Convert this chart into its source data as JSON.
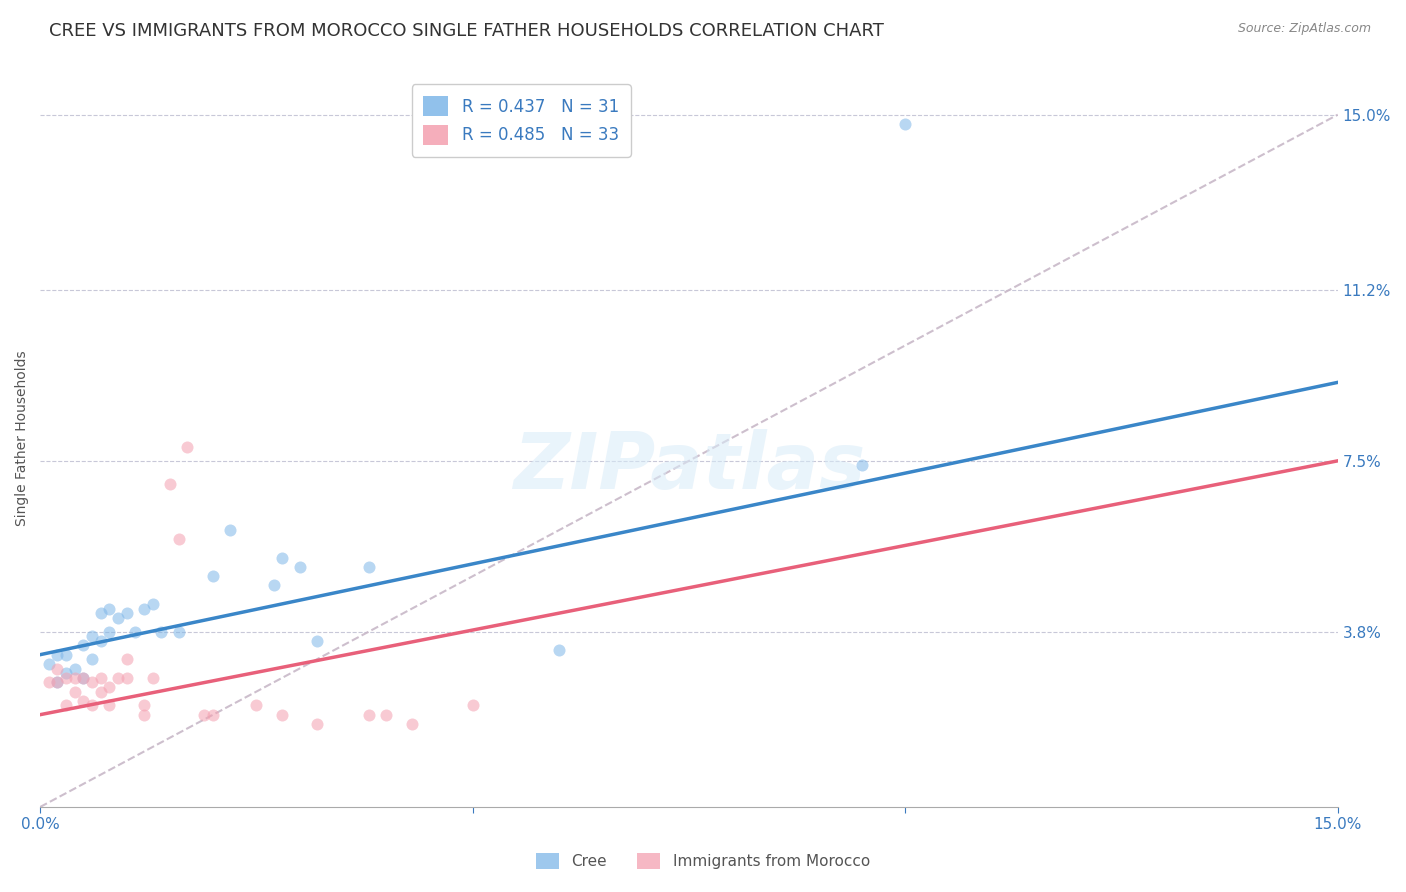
{
  "title": "CREE VS IMMIGRANTS FROM MOROCCO SINGLE FATHER HOUSEHOLDS CORRELATION CHART",
  "source": "Source: ZipAtlas.com",
  "ylabel": "Single Father Households",
  "watermark": "ZIPatlas",
  "xlim": [
    0.0,
    0.15
  ],
  "ylim": [
    0.0,
    0.16
  ],
  "ytick_labels_right": [
    "15.0%",
    "11.2%",
    "7.5%",
    "3.8%"
  ],
  "ytick_vals_right": [
    0.15,
    0.112,
    0.075,
    0.038
  ],
  "legend_entries": [
    {
      "label": "R = 0.437   N = 31",
      "color": "#7EB6E8"
    },
    {
      "label": "R = 0.485   N = 33",
      "color": "#F4A0B0"
    }
  ],
  "cree_scatter": [
    [
      0.001,
      0.031
    ],
    [
      0.002,
      0.027
    ],
    [
      0.002,
      0.033
    ],
    [
      0.003,
      0.029
    ],
    [
      0.003,
      0.033
    ],
    [
      0.004,
      0.03
    ],
    [
      0.005,
      0.028
    ],
    [
      0.005,
      0.035
    ],
    [
      0.006,
      0.032
    ],
    [
      0.006,
      0.037
    ],
    [
      0.007,
      0.036
    ],
    [
      0.007,
      0.042
    ],
    [
      0.008,
      0.038
    ],
    [
      0.008,
      0.043
    ],
    [
      0.009,
      0.041
    ],
    [
      0.01,
      0.042
    ],
    [
      0.011,
      0.038
    ],
    [
      0.012,
      0.043
    ],
    [
      0.013,
      0.044
    ],
    [
      0.014,
      0.038
    ],
    [
      0.016,
      0.038
    ],
    [
      0.02,
      0.05
    ],
    [
      0.022,
      0.06
    ],
    [
      0.027,
      0.048
    ],
    [
      0.028,
      0.054
    ],
    [
      0.03,
      0.052
    ],
    [
      0.032,
      0.036
    ],
    [
      0.038,
      0.052
    ],
    [
      0.06,
      0.034
    ],
    [
      0.095,
      0.074
    ],
    [
      0.1,
      0.148
    ]
  ],
  "morocco_scatter": [
    [
      0.001,
      0.027
    ],
    [
      0.002,
      0.027
    ],
    [
      0.002,
      0.03
    ],
    [
      0.003,
      0.022
    ],
    [
      0.003,
      0.028
    ],
    [
      0.004,
      0.025
    ],
    [
      0.004,
      0.028
    ],
    [
      0.005,
      0.023
    ],
    [
      0.005,
      0.028
    ],
    [
      0.006,
      0.022
    ],
    [
      0.006,
      0.027
    ],
    [
      0.007,
      0.025
    ],
    [
      0.007,
      0.028
    ],
    [
      0.008,
      0.022
    ],
    [
      0.008,
      0.026
    ],
    [
      0.009,
      0.028
    ],
    [
      0.01,
      0.028
    ],
    [
      0.01,
      0.032
    ],
    [
      0.012,
      0.02
    ],
    [
      0.012,
      0.022
    ],
    [
      0.013,
      0.028
    ],
    [
      0.015,
      0.07
    ],
    [
      0.016,
      0.058
    ],
    [
      0.017,
      0.078
    ],
    [
      0.019,
      0.02
    ],
    [
      0.02,
      0.02
    ],
    [
      0.025,
      0.022
    ],
    [
      0.028,
      0.02
    ],
    [
      0.032,
      0.018
    ],
    [
      0.038,
      0.02
    ],
    [
      0.04,
      0.02
    ],
    [
      0.043,
      0.018
    ],
    [
      0.05,
      0.022
    ]
  ],
  "cree_line_color": "#3A86C8",
  "morocco_line_color": "#E8607A",
  "diagonal_line_color": "#C8B8C8",
  "scatter_alpha": 0.55,
  "scatter_size": 75,
  "cree_color": "#7EB6E8",
  "morocco_color": "#F4A0B0",
  "background_color": "#FFFFFF",
  "grid_color": "#C8C8D8",
  "title_fontsize": 13,
  "axis_label_fontsize": 10,
  "tick_fontsize": 11,
  "cree_reg": [
    0.0,
    0.15,
    0.033,
    0.092
  ],
  "morocco_reg": [
    0.0,
    0.15,
    0.02,
    0.075
  ]
}
